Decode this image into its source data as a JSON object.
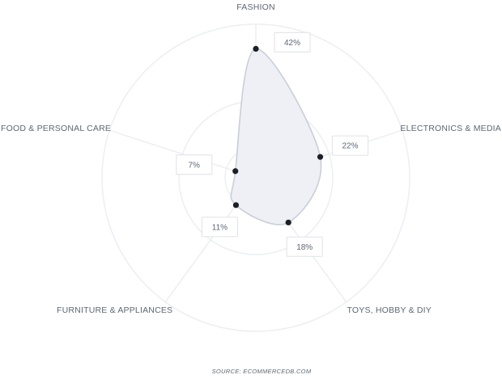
{
  "chart_data": {
    "type": "radar",
    "categories": [
      "FASHION",
      "ELECTRONICS & MEDIA",
      "TOYS, HOBBY & DIY",
      "FURNITURE & APPLIANCES",
      "FOOD & PERSONAL CARE"
    ],
    "values": [
      42,
      22,
      18,
      11,
      7
    ],
    "value_labels": [
      "42%",
      "22%",
      "18%",
      "11%",
      "7%"
    ],
    "unit": "%",
    "rmax": 50,
    "rings": [
      10,
      25,
      50
    ],
    "grid": true,
    "title": "",
    "colors": {
      "fill": "#eef0f6",
      "stroke": "#c9ced9",
      "point": "#1c1f26",
      "grid": "#eceef2",
      "label_box_border": "#e4e6eb"
    }
  },
  "source_text": "SOURCE: ECOMMERCEDB.COM"
}
